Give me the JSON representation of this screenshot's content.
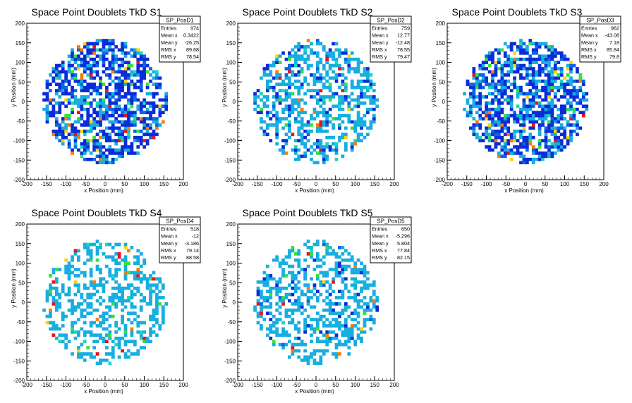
{
  "colors": {
    "palette": [
      "#0a2cd8",
      "#0a66e6",
      "#17aee0",
      "#19d9b7",
      "#34e23a",
      "#d8e21b",
      "#ffd200",
      "#ff7a00",
      "#e6141a"
    ],
    "frame": "#000000",
    "statbox_bg": "#ffffff"
  },
  "chart_data": [
    {
      "type": "heatmap",
      "title": "Space Point Doublets TkD S1",
      "xlabel": "x Position (mm)",
      "ylabel": "y Position (mm)",
      "xlim": [
        -200,
        200
      ],
      "ylim": [
        -200,
        200
      ],
      "xticks": [
        -200,
        -150,
        -100,
        -50,
        0,
        50,
        100,
        150,
        200
      ],
      "yticks": [
        -200,
        -150,
        -100,
        -50,
        0,
        50,
        100,
        150,
        200
      ],
      "dominant_level": 1,
      "statbox": {
        "name": "SP_PosD1",
        "rows": [
          {
            "label": "Entries",
            "value": "974"
          },
          {
            "label": "Mean x",
            "value": "0.3422"
          },
          {
            "label": "Mean y",
            "value": "-26.25"
          },
          {
            "label": "RMS x",
            "value": "89.68"
          },
          {
            "label": "RMS y",
            "value": "78.54"
          }
        ]
      }
    },
    {
      "type": "heatmap",
      "title": "Space Point Doublets TkD S2",
      "xlabel": "x Position (mm)",
      "ylabel": "y Position (mm)",
      "xlim": [
        -200,
        200
      ],
      "ylim": [
        -200,
        200
      ],
      "xticks": [
        -200,
        -150,
        -100,
        -50,
        0,
        50,
        100,
        150,
        200
      ],
      "yticks": [
        -200,
        -150,
        -100,
        -50,
        0,
        50,
        100,
        150,
        200
      ],
      "dominant_level": 2,
      "statbox": {
        "name": "SP_PosD2",
        "rows": [
          {
            "label": "Entries",
            "value": "759"
          },
          {
            "label": "Mean x",
            "value": "12.77"
          },
          {
            "label": "Mean y",
            "value": "-12.48"
          },
          {
            "label": "RMS x",
            "value": "78.55"
          },
          {
            "label": "RMS y",
            "value": "79.47"
          }
        ]
      }
    },
    {
      "type": "heatmap",
      "title": "Space Point Doublets TkD S3",
      "xlabel": "x Position (mm)",
      "ylabel": "y Position (mm)",
      "xlim": [
        -200,
        200
      ],
      "ylim": [
        -200,
        200
      ],
      "xticks": [
        -200,
        -150,
        -100,
        -50,
        0,
        50,
        100,
        150,
        200
      ],
      "yticks": [
        -200,
        -150,
        -100,
        -50,
        0,
        50,
        100,
        150,
        200
      ],
      "dominant_level": 1,
      "statbox": {
        "name": "SP_PosD3",
        "rows": [
          {
            "label": "Entries",
            "value": "962"
          },
          {
            "label": "Mean x",
            "value": "-43.08"
          },
          {
            "label": "Mean y",
            "value": "7.18"
          },
          {
            "label": "RMS x",
            "value": "85.84"
          },
          {
            "label": "RMS y",
            "value": "79.8"
          }
        ]
      }
    },
    {
      "type": "heatmap",
      "title": "Space Point Doublets TkD S4",
      "xlabel": "x Position (mm)",
      "ylabel": "y Position (mm)",
      "xlim": [
        -200,
        200
      ],
      "ylim": [
        -200,
        200
      ],
      "xticks": [
        -200,
        -150,
        -100,
        -50,
        0,
        50,
        100,
        150,
        200
      ],
      "yticks": [
        -200,
        -150,
        -100,
        -50,
        0,
        50,
        100,
        150,
        200
      ],
      "dominant_level": 2,
      "statbox": {
        "name": "SP_PosD4",
        "rows": [
          {
            "label": "Entries",
            "value": "518"
          },
          {
            "label": "Mean x",
            "value": "-12"
          },
          {
            "label": "Mean y",
            "value": "-3.186"
          },
          {
            "label": "RMS x",
            "value": "79.14"
          },
          {
            "label": "RMS y",
            "value": "88.58"
          }
        ]
      }
    },
    {
      "type": "heatmap",
      "title": "Space Point Doublets TkD S5",
      "xlabel": "x Position (mm)",
      "ylabel": "y Position (mm)",
      "xlim": [
        -200,
        200
      ],
      "ylim": [
        -200,
        200
      ],
      "xticks": [
        -200,
        -150,
        -100,
        -50,
        0,
        50,
        100,
        150,
        200
      ],
      "yticks": [
        -200,
        -150,
        -100,
        -50,
        0,
        50,
        100,
        150,
        200
      ],
      "dominant_level": 2,
      "statbox": {
        "name": "SP_PosD5",
        "rows": [
          {
            "label": "Entries",
            "value": "650"
          },
          {
            "label": "Mean x",
            "value": "-5.296"
          },
          {
            "label": "Mean y",
            "value": "5.804"
          },
          {
            "label": "RMS x",
            "value": "77.84"
          },
          {
            "label": "RMS y",
            "value": "82.15"
          }
        ]
      }
    }
  ]
}
